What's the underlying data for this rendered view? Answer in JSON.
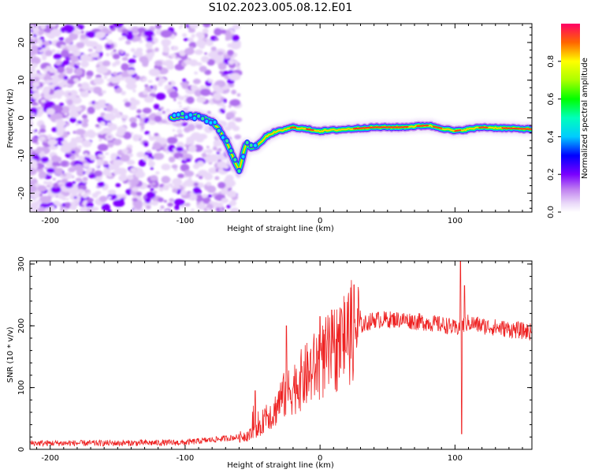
{
  "figure": {
    "title": "S102.2023.005.08.12.E01"
  },
  "colors": {
    "snr_line": "#ee2222",
    "axes": "#000000",
    "background": "#ffffff"
  },
  "chart_data": [
    {
      "type": "heatmap",
      "xlabel": "Height of straight line (km)",
      "ylabel": "Frequency (Hz)",
      "xlim": [
        -215,
        157
      ],
      "ylim": [
        -25,
        25
      ],
      "xticks": [
        -200,
        -100,
        0,
        100
      ],
      "yticks": [
        -20,
        -10,
        0,
        10,
        20
      ],
      "xtick_labels": [
        "-200",
        "-100",
        "0",
        "100"
      ],
      "ytick_labels": [
        "-20",
        "-10",
        "0",
        "10",
        "20"
      ],
      "colormap": "rainbow (purple to red)",
      "ridge_track": {
        "x": [
          -110,
          -100,
          -90,
          -80,
          -75,
          -70,
          -65,
          -60,
          -55,
          -50,
          -45,
          -40,
          -35,
          -30,
          -25,
          -20,
          -10,
          0,
          20,
          40,
          60,
          80,
          100,
          120,
          157
        ],
        "y": [
          0,
          0.5,
          0.5,
          -1,
          -3,
          -6,
          -10,
          -14,
          -7,
          -8,
          -7,
          -5,
          -4,
          -3.5,
          -3,
          -2.5,
          -3,
          -3.5,
          -3,
          -2.5,
          -2.5,
          -2,
          -3.5,
          -2.5,
          -3
        ]
      },
      "noise_region_x": [
        -215,
        -60
      ]
    },
    {
      "type": "colorbar",
      "label": "Normalized spectral amplitude",
      "range": [
        0,
        1
      ],
      "ticks": [
        0,
        0.2,
        0.4,
        0.6,
        0.8
      ],
      "tick_labels": [
        "0.0",
        "0.2",
        "0.4",
        "0.6",
        "0.8"
      ]
    },
    {
      "type": "line",
      "xlabel": "Height of straight line (km)",
      "ylabel": "SNR (10 * v/v)",
      "xlim": [
        -215,
        157
      ],
      "ylim": [
        0,
        305
      ],
      "xticks": [
        -200,
        -100,
        0,
        100
      ],
      "yticks": [
        0,
        100,
        200,
        300
      ],
      "xtick_labels": [
        "-200",
        "-100",
        "0",
        "100"
      ],
      "ytick_labels": [
        "0",
        "100",
        "200",
        "300"
      ],
      "series": [
        {
          "envelope_x": [
            -215,
            -150,
            -100,
            -60,
            -50,
            -45,
            -40,
            -35,
            -30,
            -20,
            -10,
            0,
            10,
            20,
            30,
            40,
            60,
            80,
            95,
            100,
            105,
            110,
            120,
            157
          ],
          "envelope_y": [
            10,
            10,
            11,
            20,
            25,
            30,
            60,
            55,
            80,
            100,
            120,
            140,
            160,
            185,
            200,
            210,
            210,
            205,
            200,
            195,
            200,
            205,
            200,
            190
          ],
          "spikes_x": [
            -48,
            -25,
            0,
            104,
            105,
            107
          ],
          "spikes_y": [
            95,
            200,
            215,
            305,
            25,
            265
          ]
        }
      ]
    }
  ]
}
